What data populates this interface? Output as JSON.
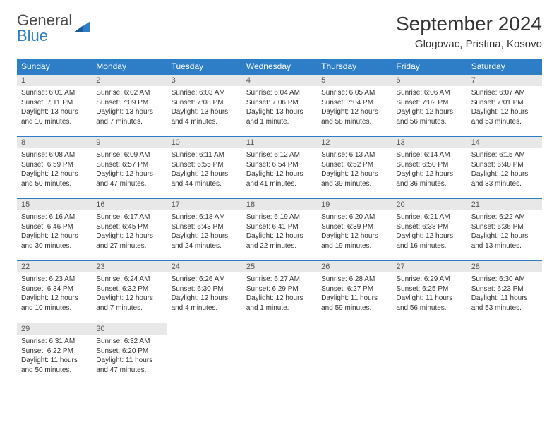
{
  "logo": {
    "text1": "General",
    "text2": "Blue"
  },
  "title": "September 2024",
  "location": "Glogovac, Pristina, Kosovo",
  "colors": {
    "header_bg": "#2d7dc7",
    "header_text": "#ffffff",
    "daybar_bg": "#e8e8e8",
    "daybar_border": "#2d7dc7",
    "text": "#333333",
    "logo_gray": "#4a4a4a",
    "logo_blue": "#2d7dc7",
    "page_bg": "#ffffff"
  },
  "fonts": {
    "month_title_pt": 28,
    "location_pt": 15,
    "weekday_pt": 12,
    "daynum_pt": 11,
    "body_pt": 10
  },
  "weekdays": [
    "Sunday",
    "Monday",
    "Tuesday",
    "Wednesday",
    "Thursday",
    "Friday",
    "Saturday"
  ],
  "weeks": [
    [
      {
        "n": "1",
        "sr": "6:01 AM",
        "ss": "7:11 PM",
        "dl": "13 hours and 10 minutes."
      },
      {
        "n": "2",
        "sr": "6:02 AM",
        "ss": "7:09 PM",
        "dl": "13 hours and 7 minutes."
      },
      {
        "n": "3",
        "sr": "6:03 AM",
        "ss": "7:08 PM",
        "dl": "13 hours and 4 minutes."
      },
      {
        "n": "4",
        "sr": "6:04 AM",
        "ss": "7:06 PM",
        "dl": "13 hours and 1 minute."
      },
      {
        "n": "5",
        "sr": "6:05 AM",
        "ss": "7:04 PM",
        "dl": "12 hours and 58 minutes."
      },
      {
        "n": "6",
        "sr": "6:06 AM",
        "ss": "7:02 PM",
        "dl": "12 hours and 56 minutes."
      },
      {
        "n": "7",
        "sr": "6:07 AM",
        "ss": "7:01 PM",
        "dl": "12 hours and 53 minutes."
      }
    ],
    [
      {
        "n": "8",
        "sr": "6:08 AM",
        "ss": "6:59 PM",
        "dl": "12 hours and 50 minutes."
      },
      {
        "n": "9",
        "sr": "6:09 AM",
        "ss": "6:57 PM",
        "dl": "12 hours and 47 minutes."
      },
      {
        "n": "10",
        "sr": "6:11 AM",
        "ss": "6:55 PM",
        "dl": "12 hours and 44 minutes."
      },
      {
        "n": "11",
        "sr": "6:12 AM",
        "ss": "6:54 PM",
        "dl": "12 hours and 41 minutes."
      },
      {
        "n": "12",
        "sr": "6:13 AM",
        "ss": "6:52 PM",
        "dl": "12 hours and 39 minutes."
      },
      {
        "n": "13",
        "sr": "6:14 AM",
        "ss": "6:50 PM",
        "dl": "12 hours and 36 minutes."
      },
      {
        "n": "14",
        "sr": "6:15 AM",
        "ss": "6:48 PM",
        "dl": "12 hours and 33 minutes."
      }
    ],
    [
      {
        "n": "15",
        "sr": "6:16 AM",
        "ss": "6:46 PM",
        "dl": "12 hours and 30 minutes."
      },
      {
        "n": "16",
        "sr": "6:17 AM",
        "ss": "6:45 PM",
        "dl": "12 hours and 27 minutes."
      },
      {
        "n": "17",
        "sr": "6:18 AM",
        "ss": "6:43 PM",
        "dl": "12 hours and 24 minutes."
      },
      {
        "n": "18",
        "sr": "6:19 AM",
        "ss": "6:41 PM",
        "dl": "12 hours and 22 minutes."
      },
      {
        "n": "19",
        "sr": "6:20 AM",
        "ss": "6:39 PM",
        "dl": "12 hours and 19 minutes."
      },
      {
        "n": "20",
        "sr": "6:21 AM",
        "ss": "6:38 PM",
        "dl": "12 hours and 16 minutes."
      },
      {
        "n": "21",
        "sr": "6:22 AM",
        "ss": "6:36 PM",
        "dl": "12 hours and 13 minutes."
      }
    ],
    [
      {
        "n": "22",
        "sr": "6:23 AM",
        "ss": "6:34 PM",
        "dl": "12 hours and 10 minutes."
      },
      {
        "n": "23",
        "sr": "6:24 AM",
        "ss": "6:32 PM",
        "dl": "12 hours and 7 minutes."
      },
      {
        "n": "24",
        "sr": "6:26 AM",
        "ss": "6:30 PM",
        "dl": "12 hours and 4 minutes."
      },
      {
        "n": "25",
        "sr": "6:27 AM",
        "ss": "6:29 PM",
        "dl": "12 hours and 1 minute."
      },
      {
        "n": "26",
        "sr": "6:28 AM",
        "ss": "6:27 PM",
        "dl": "11 hours and 59 minutes."
      },
      {
        "n": "27",
        "sr": "6:29 AM",
        "ss": "6:25 PM",
        "dl": "11 hours and 56 minutes."
      },
      {
        "n": "28",
        "sr": "6:30 AM",
        "ss": "6:23 PM",
        "dl": "11 hours and 53 minutes."
      }
    ],
    [
      {
        "n": "29",
        "sr": "6:31 AM",
        "ss": "6:22 PM",
        "dl": "11 hours and 50 minutes."
      },
      {
        "n": "30",
        "sr": "6:32 AM",
        "ss": "6:20 PM",
        "dl": "11 hours and 47 minutes."
      },
      null,
      null,
      null,
      null,
      null
    ]
  ],
  "labels": {
    "sunrise": "Sunrise:",
    "sunset": "Sunset:",
    "daylight": "Daylight:"
  }
}
